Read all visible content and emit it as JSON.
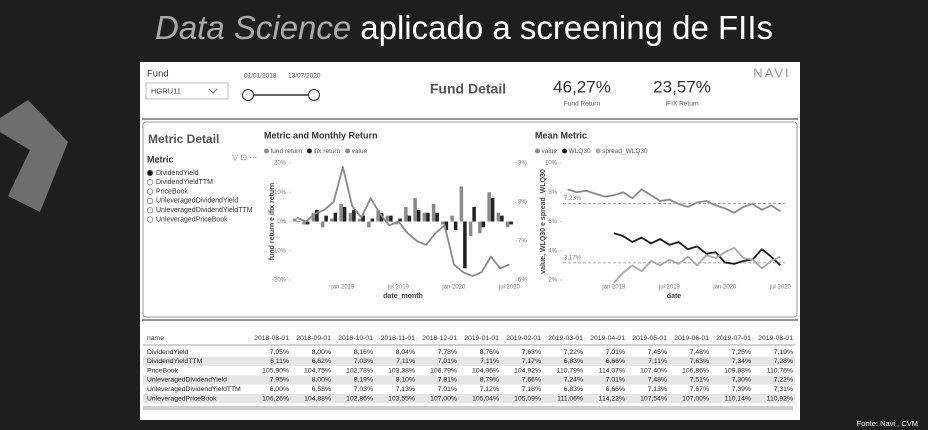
{
  "slide": {
    "title_italic": "Data Science",
    "title_rest": "aplicado a screening de FIIs",
    "source": "Fonte: Navi , CVM"
  },
  "header": {
    "fund_label": "Fund",
    "fund_value": "HGRU11",
    "date_start": "01/01/2018",
    "date_end": "13/07/2020",
    "title": "Fund Detail",
    "fund_return": "46,27%",
    "fund_return_label": "Fund Return",
    "ifix_return": "23,57%",
    "ifix_return_label": "IFIX Return",
    "logo": "NAVI"
  },
  "metric_panel": {
    "title": "Metric Detail",
    "slicer_label": "Metric",
    "options": [
      "DividendYield",
      "DividendYieldTTM",
      "PriceBook",
      "UnleveragedDividendYield",
      "UnleveragedDividendYieldTTM",
      "UnleveragedPriceBook"
    ],
    "selected": 0
  },
  "chart_data": [
    {
      "type": "bar",
      "title": "Metric and Monthly Return",
      "xlabel": "date_month",
      "ylabel": "fund return e ifix return",
      "categories": [
        null,
        null,
        null,
        null,
        null,
        "jan 2019",
        null,
        null,
        null,
        null,
        null,
        "jul 2019",
        null,
        null,
        null,
        null,
        null,
        "jan 2020",
        null,
        null,
        null,
        null,
        null,
        "jul 2020"
      ],
      "series": [
        {
          "name": "fund return",
          "color": "#8a8a8a",
          "values": [
            1,
            -1,
            3,
            -2,
            1,
            6,
            3,
            1,
            -2,
            4,
            2,
            -1,
            5,
            8,
            3,
            6,
            -1,
            2,
            12,
            -5,
            -4,
            10,
            3,
            -2
          ]
        },
        {
          "name": "ifix return",
          "color": "#222222",
          "values": [
            0,
            -1,
            4,
            2,
            3,
            5,
            4,
            2,
            1,
            3,
            2,
            1,
            2,
            4,
            3,
            3,
            -3,
            -3,
            -16,
            5,
            -2,
            8,
            2,
            -1
          ]
        },
        {
          "name": "value",
          "color": "#8a8a8a",
          "type": "line",
          "axis": "y2",
          "values": [
            7.6,
            7.5,
            7.7,
            7.8,
            8.0,
            8.9,
            7.9,
            7.6,
            8.1,
            7.7,
            7.4,
            7.5,
            7.2,
            7.0,
            6.9,
            7.2,
            7.4,
            6.4,
            6.2,
            6.1,
            6.2,
            6.6,
            6.3,
            6.4
          ]
        }
      ],
      "ylim": [
        -20,
        20
      ],
      "yticks": [
        {
          "value": 20,
          "label": "20%"
        },
        {
          "value": 10,
          "label": "10%"
        },
        {
          "value": 0,
          "label": "0%"
        },
        {
          "value": -10,
          "label": "-10%"
        },
        {
          "value": -20,
          "label": "-20%"
        }
      ],
      "y2lim": [
        6,
        9
      ],
      "y2ticks": [
        {
          "value": 9,
          "label": "9%"
        },
        {
          "value": 8,
          "label": "8%"
        },
        {
          "value": 7,
          "label": "7%"
        },
        {
          "value": 6,
          "label": "6%"
        }
      ]
    },
    {
      "type": "line",
      "title": "Mean Metric",
      "xlabel": "date",
      "ylabel": "value, WLQ30 e spread_WLQ30",
      "categories": [
        null,
        null,
        null,
        null,
        null,
        "jan 2019",
        null,
        null,
        null,
        null,
        null,
        "jul 2019",
        null,
        null,
        null,
        null,
        null,
        "jan 2020",
        null,
        null,
        null,
        null,
        null,
        "jul 2020"
      ],
      "series": [
        {
          "name": "value",
          "color": "#8a8a8a",
          "values": [
            8.2,
            8.0,
            8.1,
            7.9,
            7.7,
            7.8,
            8.0,
            7.6,
            8.2,
            7.8,
            7.4,
            7.5,
            7.2,
            7.0,
            7.3,
            7.4,
            7.1,
            6.9,
            6.6,
            7.0,
            7.2,
            6.8,
            7.1,
            6.7
          ]
        },
        {
          "name": "WLQ30",
          "color": "#1a1a1a",
          "values": [
            null,
            null,
            null,
            null,
            null,
            5.2,
            5.0,
            4.6,
            4.9,
            4.5,
            4.8,
            4.4,
            4.6,
            4.1,
            4.3,
            3.8,
            3.9,
            3.2,
            3.1,
            3.3,
            3.4,
            4.1,
            3.6,
            3.0
          ]
        },
        {
          "name": "spread_WLQ30",
          "color": "#a8a8a8",
          "values": [
            null,
            null,
            null,
            null,
            null,
            1.8,
            2.5,
            3.0,
            2.6,
            3.3,
            3.0,
            3.4,
            3.1,
            3.6,
            3.0,
            3.7,
            3.5,
            3.9,
            4.2,
            3.5,
            3.4,
            2.8,
            3.3,
            3.6
          ]
        }
      ],
      "ylim": [
        2,
        10
      ],
      "yticks": [
        {
          "value": 10,
          "label": "10%"
        },
        {
          "value": 8,
          "label": "8%"
        },
        {
          "value": 6,
          "label": "6%"
        },
        {
          "value": 4,
          "label": "4%"
        },
        {
          "value": 2,
          "label": "2%"
        }
      ],
      "reference_lines": [
        {
          "value": 7.23,
          "label": "7,23%"
        },
        {
          "value": 3.17,
          "label": "3,17%"
        }
      ]
    }
  ],
  "table": {
    "columns": [
      "name",
      "2018-08-01",
      "2018-09-01",
      "2018-10-01",
      "2018-11-01",
      "2018-12-01",
      "2019-01-01",
      "2019-02-01",
      "2019-03-01",
      "2019-04-01",
      "2019-05-01",
      "2019-06-01",
      "2019-07-01",
      "2019-08-01"
    ],
    "rows": [
      [
        "DividendYield",
        "7,95%",
        "8,00%",
        "8,16%",
        "8,04%",
        "7,78%",
        "8,76%",
        "7,63%",
        "7,22%",
        "7,01%",
        "7,45%",
        "7,48%",
        "7,25%",
        "7,19%"
      ],
      [
        "DividendYieldTTM",
        "6,11%",
        "6,62%",
        "7,03%",
        "7,11%",
        "7,01%",
        "7,11%",
        "7,17%",
        "6,83%",
        "6,66%",
        "7,11%",
        "7,63%",
        "7,34%",
        "7,28%"
      ],
      [
        "PriceBook",
        "105,90%",
        "104,75%",
        "102,78%",
        "103,38%",
        "106,79%",
        "104,96%",
        "104,92%",
        "110,79%",
        "114,07%",
        "107,40%",
        "106,86%",
        "109,88%",
        "110,76%"
      ],
      [
        "UnleveragedDividendYield",
        "7,95%",
        "8,00%",
        "8,19%",
        "8,10%",
        "7,81%",
        "8,79%",
        "7,66%",
        "7,24%",
        "7,01%",
        "7,48%",
        "7,51%",
        "7,30%",
        "7,22%"
      ],
      [
        "UnleveragedDividendYieldTTM",
        "6,00%",
        "6,58%",
        "7,03%",
        "7,13%",
        "7,01%",
        "7,12%",
        "7,18%",
        "6,83%",
        "6,66%",
        "7,13%",
        "7,67%",
        "7,39%",
        "7,31%"
      ],
      [
        "UnleveragedPriceBook",
        "106,26%",
        "104,88%",
        "102,86%",
        "103,55%",
        "107,00%",
        "105,04%",
        "105,09%",
        "111,06%",
        "114,22%",
        "107,54%",
        "107,00%",
        "110,14%",
        "110,92%"
      ]
    ]
  }
}
